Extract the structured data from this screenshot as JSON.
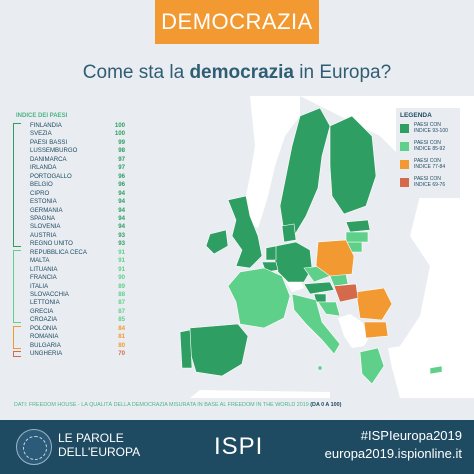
{
  "header": {
    "title": "DEMOCRAZIA"
  },
  "subtitle": {
    "prefix": "Come sta la ",
    "bold": "democrazia",
    "suffix": " in Europa?"
  },
  "list": {
    "title": "INDICE DEI PAESI",
    "countries": [
      {
        "name": "FINLANDIA",
        "value": "100",
        "group": 1
      },
      {
        "name": "SVEZIA",
        "value": "100",
        "group": 1
      },
      {
        "name": "PAESI BASSI",
        "value": "99",
        "group": 1
      },
      {
        "name": "LUSSEMBURGO",
        "value": "98",
        "group": 1
      },
      {
        "name": "DANIMARCA",
        "value": "97",
        "group": 1
      },
      {
        "name": "IRLANDA",
        "value": "97",
        "group": 1
      },
      {
        "name": "PORTOGALLO",
        "value": "96",
        "group": 1
      },
      {
        "name": "BELGIO",
        "value": "96",
        "group": 1
      },
      {
        "name": "CIPRO",
        "value": "94",
        "group": 1
      },
      {
        "name": "ESTONIA",
        "value": "94",
        "group": 1
      },
      {
        "name": "GERMANIA",
        "value": "94",
        "group": 1
      },
      {
        "name": "SPAGNA",
        "value": "94",
        "group": 1
      },
      {
        "name": "SLOVENIA",
        "value": "94",
        "group": 1
      },
      {
        "name": "AUSTRIA",
        "value": "93",
        "group": 1
      },
      {
        "name": "REGNO UNITO",
        "value": "93",
        "group": 1
      },
      {
        "name": "REPUBBLICA CECA",
        "value": "91",
        "group": 2
      },
      {
        "name": "MALTA",
        "value": "91",
        "group": 2
      },
      {
        "name": "LITUANIA",
        "value": "91",
        "group": 2
      },
      {
        "name": "FRANCIA",
        "value": "90",
        "group": 2
      },
      {
        "name": "ITALIA",
        "value": "89",
        "group": 2
      },
      {
        "name": "SLOVACCHIA",
        "value": "88",
        "group": 2
      },
      {
        "name": "LETTONIA",
        "value": "87",
        "group": 2
      },
      {
        "name": "GRECIA",
        "value": "87",
        "group": 2
      },
      {
        "name": "CROAZIA",
        "value": "85",
        "group": 2
      },
      {
        "name": "POLONIA",
        "value": "84",
        "group": 3
      },
      {
        "name": "ROMANIA",
        "value": "81",
        "group": 3
      },
      {
        "name": "BULGARIA",
        "value": "80",
        "group": 3
      },
      {
        "name": "UNGHERIA",
        "value": "70",
        "group": 4
      }
    ]
  },
  "legend": {
    "title": "LEGENDA",
    "items": [
      {
        "line1": "PAESI CON",
        "line2": "INDICE 93-100",
        "color": "#2e9e62"
      },
      {
        "line1": "PAESI CON",
        "line2": "INDICE 85-92",
        "color": "#5fd08a"
      },
      {
        "line1": "PAESI CON",
        "line2": "INDICE 77-84",
        "color": "#f29a31"
      },
      {
        "line1": "PAESI CON",
        "line2": "INDICE 69-76",
        "color": "#d4694c"
      }
    ]
  },
  "colors": {
    "group1": "#2e9e62",
    "group2": "#5fd08a",
    "group3": "#f29a31",
    "group4": "#d4694c",
    "non_eu": "#ffffff",
    "sea": "#e9edf1"
  },
  "source": {
    "text": "DATI: FREEDOM HOUSE - LA QUALITÀ DELLA DEMOCRAZIA MISURATA IN BASE AL FREEDOM IN THE WORLD 2019 ",
    "bold": "(DA 0 A 100)"
  },
  "footer": {
    "parole_line1": "LE PAROLE",
    "parole_line2": "DELL'EUROPA",
    "ispi": "ISPI",
    "hashtag": "#ISPIeuropa2019",
    "site": "europa2019.ispionline.it"
  }
}
